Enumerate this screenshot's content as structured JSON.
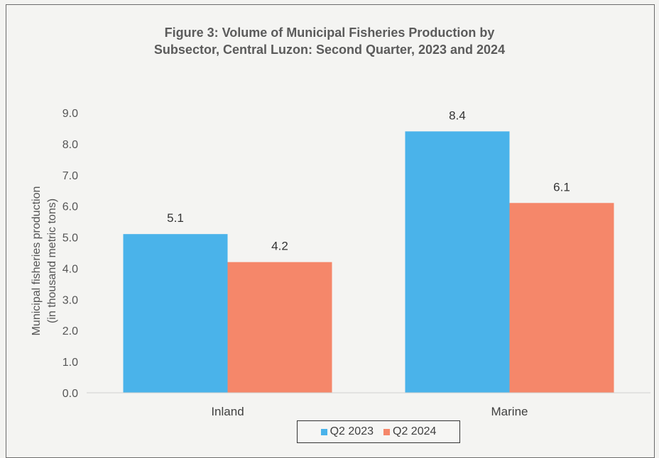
{
  "chart_data": {
    "type": "bar",
    "title": [
      "Figure 3: Volume of Municipal Fisheries Production by",
      "Subsector, Central Luzon: Second Quarter, 2023 and 2024"
    ],
    "ylabel": [
      "Municipal fisheries production",
      "(in thousand metric tons)"
    ],
    "xlabel": "",
    "categories": [
      "Inland",
      "Marine"
    ],
    "series": [
      {
        "name": "Q2 2023",
        "values": [
          5.1,
          8.4
        ],
        "color": "#4ab3ea"
      },
      {
        "name": "Q2 2024",
        "values": [
          4.2,
          6.1
        ],
        "color": "#f5876a"
      }
    ],
    "ylim": [
      0,
      9
    ],
    "yticks": [
      "0.0",
      "1.0",
      "2.0",
      "3.0",
      "4.0",
      "5.0",
      "6.0",
      "7.0",
      "8.0",
      "9.0"
    ],
    "data_labels": [
      [
        "5.1",
        "8.4"
      ],
      [
        "4.2",
        "6.1"
      ]
    ],
    "grid": false,
    "legend_position": "bottom"
  }
}
